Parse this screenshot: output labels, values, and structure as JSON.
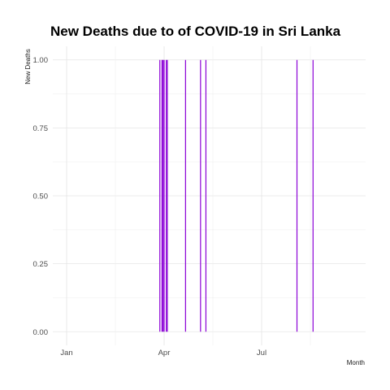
{
  "chart_data": {
    "type": "bar",
    "title": "New Deaths due to of COVID-19 in Sri Lanka",
    "xlabel": "Month",
    "ylabel": "New Deaths",
    "x_axis": {
      "type": "date",
      "min": "2020-01-01",
      "max": "2020-09-30",
      "ticks": [
        {
          "date": "2020-01-01",
          "label": "Jan"
        },
        {
          "date": "2020-04-01",
          "label": "Apr"
        },
        {
          "date": "2020-07-01",
          "label": "Jul"
        }
      ]
    },
    "y_axis": {
      "ylim": [
        -0.05,
        1.05
      ],
      "ticks": [
        0,
        0.25,
        0.5,
        0.75,
        1.0
      ],
      "tick_labels": [
        "0.00",
        "0.25",
        "0.50",
        "0.75",
        "1.00"
      ]
    },
    "series": [
      {
        "name": "New Deaths",
        "color": "#8B00D6",
        "points": [
          {
            "date": "2020-03-28",
            "value": 1
          },
          {
            "date": "2020-03-30",
            "value": 1
          },
          {
            "date": "2020-03-31",
            "value": 1
          },
          {
            "date": "2020-04-01",
            "value": 1
          },
          {
            "date": "2020-04-03",
            "value": 1
          },
          {
            "date": "2020-04-04",
            "value": 1
          },
          {
            "date": "2020-04-21",
            "value": 1
          },
          {
            "date": "2020-05-05",
            "value": 1
          },
          {
            "date": "2020-05-10",
            "value": 1
          },
          {
            "date": "2020-08-03",
            "value": 1
          },
          {
            "date": "2020-08-18",
            "value": 1
          }
        ]
      }
    ],
    "grid": true
  }
}
